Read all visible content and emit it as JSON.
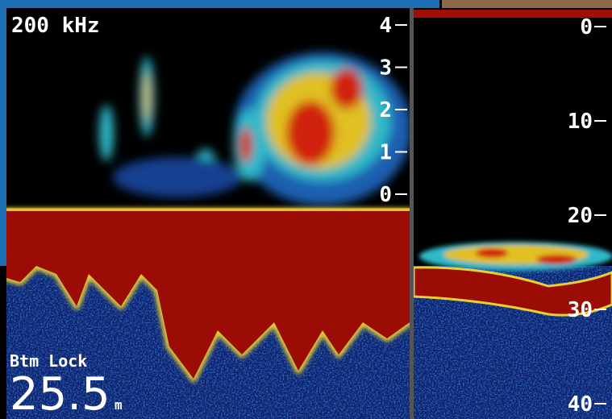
{
  "left_panel": {
    "frequency": "200 kHz",
    "scale": [
      "4",
      "3",
      "2",
      "1",
      "0"
    ],
    "bottom_lock": {
      "label": "Btm Lock",
      "depth": "25.5",
      "unit": "m"
    }
  },
  "right_panel": {
    "scale": [
      "0",
      "10",
      "20",
      "30",
      "40"
    ]
  }
}
